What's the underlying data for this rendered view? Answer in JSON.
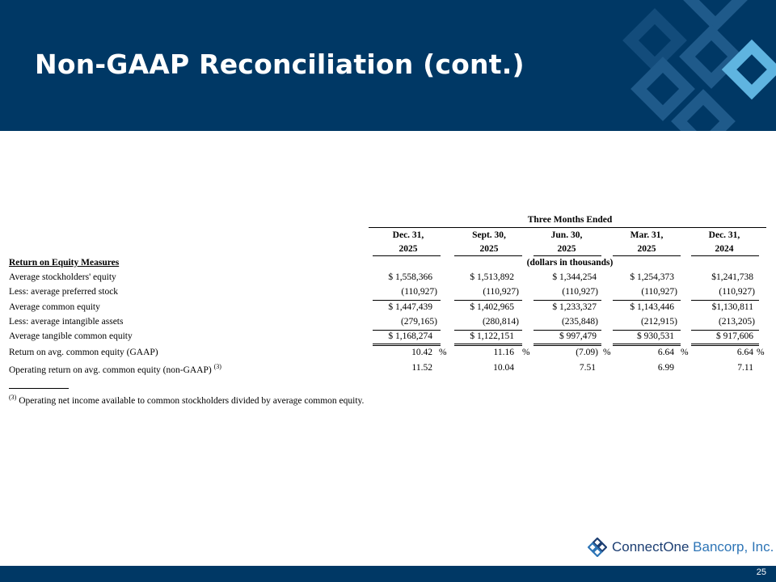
{
  "title": "Non-GAAP Reconciliation (cont.)",
  "page_number": "25",
  "logo": {
    "name_part1": "ConnectOne",
    "name_part2": " Bancorp, Inc."
  },
  "table": {
    "group_header": "Three Months Ended",
    "units_note": "(dollars in thousands)",
    "columns": [
      {
        "line1": "Dec. 31,",
        "line2": "2025"
      },
      {
        "line1": "Sept. 30,",
        "line2": "2025"
      },
      {
        "line1": "Jun. 30,",
        "line2": "2025"
      },
      {
        "line1": "Mar. 31,",
        "line2": "2025"
      },
      {
        "line1": "Dec. 31,",
        "line2": "2024"
      }
    ],
    "section_header": "Return on Equity Measures",
    "rows": [
      {
        "label": "Average stockholders' equity",
        "values": [
          "$ 1,558,366",
          "$ 1,513,892",
          "$ 1,344,254",
          "$ 1,254,373",
          "$1,241,738"
        ]
      },
      {
        "label": "Less: average preferred stock",
        "values": [
          "(110,927)",
          "(110,927)",
          "(110,927)",
          "(110,927)",
          "(110,927)"
        ]
      },
      {
        "label": "Average common equity",
        "values": [
          "$ 1,447,439",
          "$ 1,402,965",
          "$ 1,233,327",
          "$ 1,143,446",
          "$1,130,811"
        ]
      },
      {
        "label": "Less: average intangible assets",
        "values": [
          "(279,165)",
          "(280,814)",
          "(235,848)",
          "(212,915)",
          "(213,205)"
        ]
      },
      {
        "label": "Average tangible common equity",
        "values": [
          "$ 1,168,274",
          "$ 1,122,151",
          "$ 997,479",
          "$ 930,531",
          "$ 917,606"
        ]
      },
      {
        "label": "Return on avg. common equity (GAAP)",
        "values": [
          "10.42",
          "11.16",
          "(7.09)",
          "6.64",
          "6.64"
        ],
        "unit": "%"
      },
      {
        "label": "Operating return on avg. common equity (non-GAAP)",
        "superscript": "(3)",
        "values": [
          "11.52",
          "10.04",
          "7.51",
          "6.99",
          "7.11"
        ]
      }
    ],
    "footnote": {
      "mark": "(3)",
      "text": "Operating net income available to common stockholders divided by average common equity."
    }
  },
  "colors": {
    "header_bg": "#003865",
    "logo_dark": "#1c3e72",
    "logo_light": "#2e75b6"
  }
}
